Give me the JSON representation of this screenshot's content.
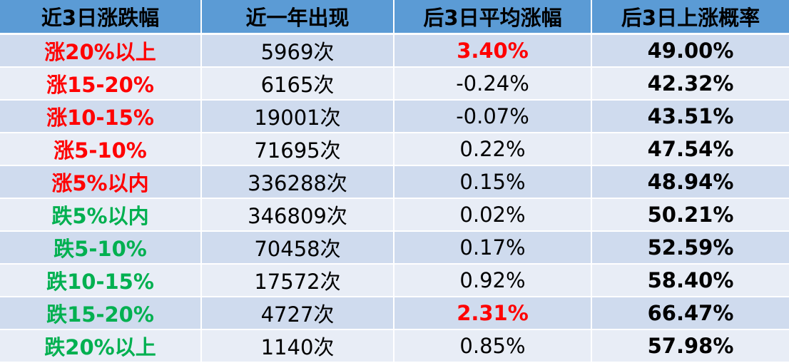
{
  "headers": [
    "近3日涨跌幅",
    "近一年出现",
    "后3日平均涨幅",
    "后3日上涨概率"
  ],
  "colors": {
    "header_bg": "#5b9bd5",
    "row_odd": "#cfdbee",
    "row_even": "#e8edf6",
    "up_red": "#ff0000",
    "down_green": "#00b050"
  },
  "rows": [
    {
      "label": "涨20%以上",
      "count": "5969次",
      "avg": "3.40%",
      "prob": "49.00%"
    },
    {
      "label": "涨15-20%",
      "count": "6165次",
      "avg": "-0.24%",
      "prob": "42.32%"
    },
    {
      "label": "涨10-15%",
      "count": "19001次",
      "avg": "-0.07%",
      "prob": "43.51%"
    },
    {
      "label": "涨5-10%",
      "count": "71695次",
      "avg": "0.22%",
      "prob": "47.54%"
    },
    {
      "label": "涨5%以内",
      "count": "336288次",
      "avg": "0.15%",
      "prob": "48.94%"
    },
    {
      "label": "跌5%以内",
      "count": "346809次",
      "avg": "0.02%",
      "prob": "50.21%"
    },
    {
      "label": "跌5-10%",
      "count": "70458次",
      "avg": "0.17%",
      "prob": "52.59%"
    },
    {
      "label": "跌10-15%",
      "count": "17572次",
      "avg": "0.92%",
      "prob": "58.40%"
    },
    {
      "label": "跌15-20%",
      "count": "4727次",
      "avg": "2.31%",
      "prob": "66.47%"
    },
    {
      "label": "跌20%以上",
      "count": "1140次",
      "avg": "0.85%",
      "prob": "57.98%"
    }
  ]
}
